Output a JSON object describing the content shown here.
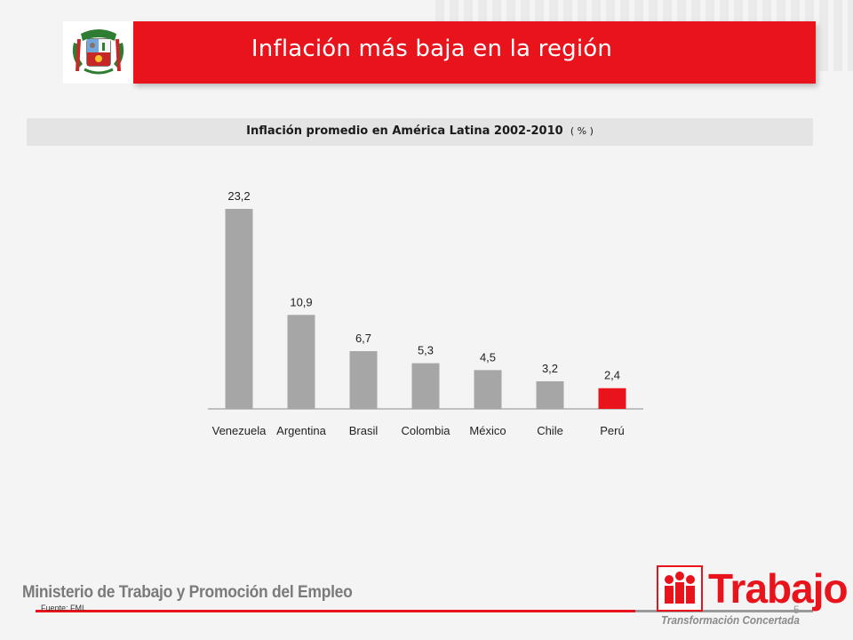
{
  "slide": {
    "title": "Inflación más baja en la región",
    "page_number": "5",
    "source": "Fuente: FMI.",
    "footer_org": "Ministerio de Trabajo y Promoción del Empleo",
    "logo_name": "Trabajo",
    "logo_tagline": "Transformación Concertada"
  },
  "chart_header": {
    "main": "Inflación promedio en América Latina 2002-2010",
    "unit": "( % )"
  },
  "colors": {
    "accent": "#e8131b",
    "bar_default": "#a6a6a6",
    "bar_highlight": "#e8131b"
  },
  "chart_data": {
    "type": "bar",
    "title": "Inflación promedio en América Latina 2002-2010 ( % )",
    "categories": [
      "Venezuela",
      "Argentina",
      "Brasil",
      "Colombia",
      "México",
      "Chile",
      "Perú"
    ],
    "values": [
      23.2,
      10.9,
      6.7,
      5.3,
      4.5,
      3.2,
      2.4
    ],
    "value_labels": [
      "23,2",
      "10,9",
      "6,7",
      "5,3",
      "4,5",
      "3,2",
      "2,4"
    ],
    "highlight": "Perú",
    "ylim": [
      0,
      23.2
    ],
    "grid": false,
    "legend": "none"
  }
}
